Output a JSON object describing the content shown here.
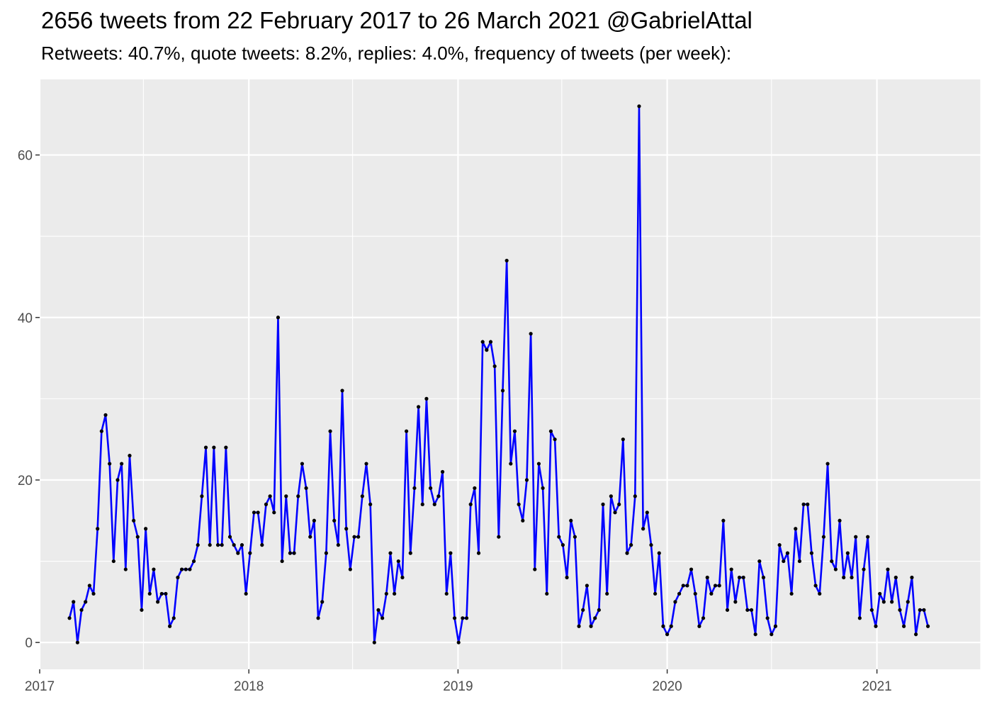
{
  "header": {
    "title": "2656 tweets from 22 February 2017 to 26 March 2021 @GabrielAttal",
    "subtitle": "Retweets: 40.7%, quote tweets: 8.2%, replies: 4.0%, frequency of tweets (per week):"
  },
  "chart_data": {
    "type": "line",
    "title": "2656 tweets from 22 February 2017 to 26 March 2021 @GabrielAttal",
    "subtitle": "Retweets: 40.7%, quote tweets: 8.2%, replies: 4.0%, frequency of tweets (per week):",
    "xlabel": "",
    "ylabel": "",
    "x_start": "2017-02-22",
    "x_step_days": 7,
    "xlim": [
      "2017-01-01",
      "2021-07-01"
    ],
    "ylim": [
      -3.3,
      69.3
    ],
    "x_ticks": [
      "2017",
      "2018",
      "2019",
      "2020",
      "2021"
    ],
    "y_ticks": [
      0,
      20,
      40,
      60
    ],
    "grid": true,
    "legend": "none",
    "line_color": "#0000ff",
    "point_color": "#000000",
    "background": "#ebebeb",
    "series": [
      {
        "values": [
          3,
          5,
          0,
          4,
          5,
          7,
          6,
          14,
          26,
          28,
          22,
          10,
          20,
          22,
          9,
          23,
          15,
          13,
          4,
          14,
          6,
          9,
          5,
          6,
          6,
          2,
          3,
          8,
          9,
          9,
          9,
          10,
          12,
          18,
          24,
          12,
          24,
          12,
          12,
          24,
          13,
          12,
          11,
          12,
          6,
          11,
          16,
          16,
          12,
          17,
          18,
          16,
          40,
          10,
          18,
          11,
          11,
          18,
          22,
          19,
          13,
          15,
          3,
          5,
          11,
          26,
          15,
          12,
          31,
          14,
          9,
          13,
          13,
          18,
          22,
          17,
          0,
          4,
          3,
          6,
          11,
          6,
          10,
          8,
          26,
          11,
          19,
          29,
          17,
          30,
          19,
          17,
          18,
          21,
          6,
          11,
          3,
          0,
          3,
          3,
          17,
          19,
          11,
          37,
          36,
          37,
          34,
          13,
          31,
          47,
          22,
          26,
          17,
          15,
          20,
          38,
          9,
          22,
          19,
          6,
          26,
          25,
          13,
          12,
          8,
          15,
          13,
          2,
          4,
          7,
          2,
          3,
          4,
          17,
          6,
          18,
          16,
          17,
          25,
          11,
          12,
          18,
          66,
          14,
          16,
          12,
          6,
          11,
          2,
          1,
          2,
          5,
          6,
          7,
          7,
          9,
          6,
          2,
          3,
          8,
          6,
          7,
          7,
          15,
          4,
          9,
          5,
          8,
          8,
          4,
          4,
          1,
          10,
          8,
          3,
          1,
          2,
          12,
          10,
          11,
          6,
          14,
          10,
          17,
          17,
          11,
          7,
          6,
          13,
          22,
          10,
          9,
          15,
          8,
          11,
          8,
          13,
          3,
          9,
          13,
          4,
          2,
          6,
          5,
          9,
          5,
          8,
          4,
          2,
          5,
          8,
          1,
          4,
          4,
          2
        ]
      }
    ]
  }
}
